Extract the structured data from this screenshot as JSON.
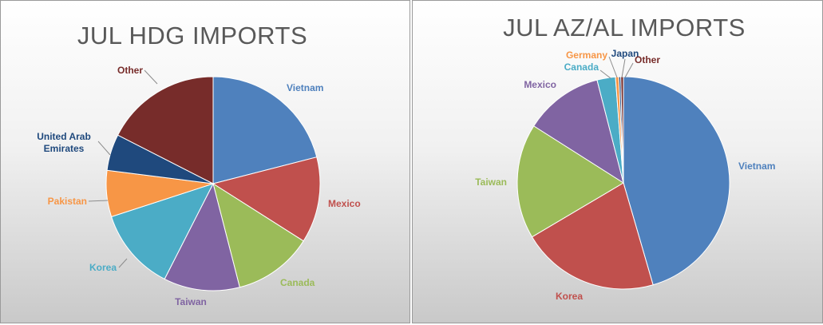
{
  "chart_data": [
    {
      "type": "pie",
      "title": "JUL HDG IMPORTS",
      "slices": [
        {
          "label": "Vietnam",
          "value": 21.0,
          "color": "#4f81bd"
        },
        {
          "label": "Mexico",
          "value": 13.0,
          "color": "#c0504d"
        },
        {
          "label": "Canada",
          "value": 12.0,
          "color": "#9bbb59"
        },
        {
          "label": "Taiwan",
          "value": 11.5,
          "color": "#8064a2"
        },
        {
          "label": "Korea",
          "value": 12.5,
          "color": "#4bacc6"
        },
        {
          "label": "Pakistan",
          "value": 7.0,
          "color": "#f79646"
        },
        {
          "label": "United Arab Emirates",
          "value": 5.5,
          "color": "#1f497d"
        },
        {
          "label": "Other",
          "value": 17.5,
          "color": "#772c2a"
        }
      ]
    },
    {
      "type": "pie",
      "title": "JUL AZ/AL IMPORTS",
      "slices": [
        {
          "label": "Vietnam",
          "value": 45.5,
          "color": "#4f81bd"
        },
        {
          "label": "Korea",
          "value": 21.0,
          "color": "#c0504d"
        },
        {
          "label": "Taiwan",
          "value": 17.5,
          "color": "#9bbb59"
        },
        {
          "label": "Mexico",
          "value": 12.0,
          "color": "#8064a2"
        },
        {
          "label": "Canada",
          "value": 2.8,
          "color": "#4bacc6"
        },
        {
          "label": "Germany",
          "value": 0.5,
          "color": "#f79646"
        },
        {
          "label": "Japan",
          "value": 0.3,
          "color": "#1f497d"
        },
        {
          "label": "Other",
          "value": 0.4,
          "color": "#772c2a"
        }
      ]
    }
  ]
}
